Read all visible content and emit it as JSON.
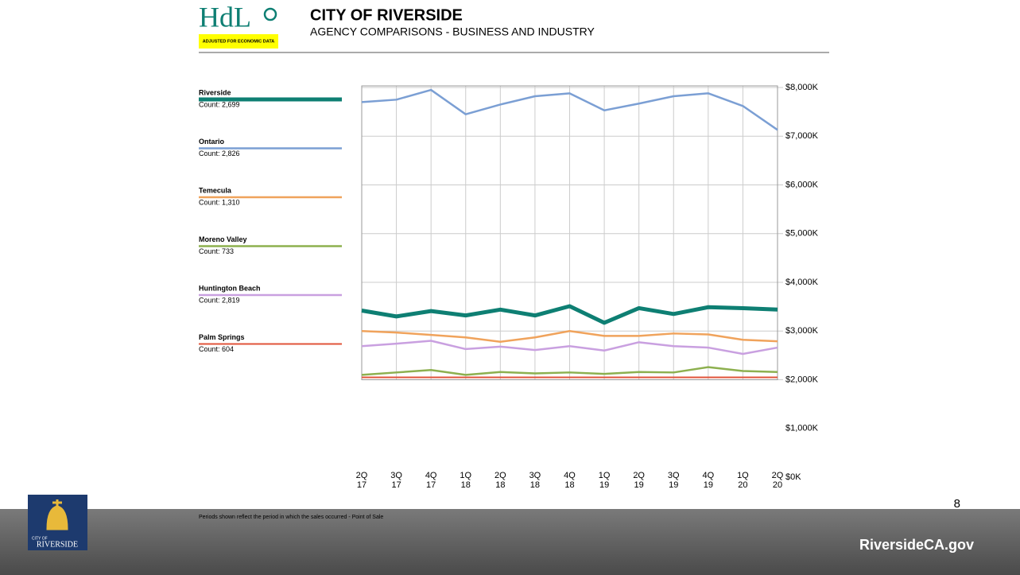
{
  "header": {
    "logo": "HdL",
    "logo_note": "ADJUSTED FOR ECONOMIC DATA",
    "title": "CITY OF RIVERSIDE",
    "subtitle": "AGENCY COMPARISONS - BUSINESS AND INDUSTRY"
  },
  "chart_data": {
    "type": "line",
    "categories": [
      [
        "2Q",
        "17"
      ],
      [
        "3Q",
        "17"
      ],
      [
        "4Q",
        "17"
      ],
      [
        "1Q",
        "18"
      ],
      [
        "2Q",
        "18"
      ],
      [
        "3Q",
        "18"
      ],
      [
        "4Q",
        "18"
      ],
      [
        "1Q",
        "19"
      ],
      [
        "2Q",
        "19"
      ],
      [
        "3Q",
        "19"
      ],
      [
        "4Q",
        "19"
      ],
      [
        "1Q",
        "20"
      ],
      [
        "2Q",
        "20"
      ]
    ],
    "ylim": [
      0,
      8000
    ],
    "yticks": [
      {
        "value": 0,
        "label": "$0K"
      },
      {
        "value": 1000,
        "label": "$1,000K"
      },
      {
        "value": 2000,
        "label": "$2,000K"
      },
      {
        "value": 3000,
        "label": "$3,000K"
      },
      {
        "value": 4000,
        "label": "$4,000K"
      },
      {
        "value": 5000,
        "label": "$5,000K"
      },
      {
        "value": 6000,
        "label": "$6,000K"
      },
      {
        "value": 7000,
        "label": "$7,000K"
      },
      {
        "value": 8000,
        "label": "$8,000K"
      }
    ],
    "grid": true,
    "series": [
      {
        "name": "Riverside",
        "count": "Count: 2,699",
        "color": "#0e7f73",
        "width": 5,
        "values": [
          3420,
          3300,
          3410,
          3320,
          3440,
          3320,
          3510,
          3170,
          3470,
          3350,
          3490,
          3470,
          3440
        ]
      },
      {
        "name": "Ontario",
        "count": "Count: 2,826",
        "color": "#7b9fd4",
        "width": 2.5,
        "values": [
          7700,
          7750,
          7950,
          7450,
          7650,
          7820,
          7880,
          7530,
          7670,
          7820,
          7880,
          7620,
          7130
        ]
      },
      {
        "name": "Temecula",
        "count": "Count: 1,310",
        "color": "#f0a35c",
        "width": 2.5,
        "values": [
          3000,
          2970,
          2920,
          2870,
          2780,
          2870,
          3000,
          2900,
          2900,
          2950,
          2930,
          2820,
          2790
        ]
      },
      {
        "name": "Moreno Valley",
        "count": "Count: 733",
        "color": "#8db04f",
        "width": 2.5,
        "values": [
          2100,
          2150,
          2200,
          2100,
          2160,
          2130,
          2150,
          2120,
          2160,
          2150,
          2260,
          2180,
          2160
        ]
      },
      {
        "name": "Huntington Beach",
        "count": "Count: 2,819",
        "color": "#c9a0e0",
        "width": 2.5,
        "values": [
          2690,
          2740,
          2800,
          2630,
          2680,
          2610,
          2690,
          2600,
          2770,
          2690,
          2660,
          2530,
          2660
        ]
      },
      {
        "name": "Palm Springs",
        "count": "Count: 604",
        "color": "#e0533a",
        "width": 2,
        "values": [
          2050,
          2050,
          2050,
          2050,
          2050,
          2050,
          2050,
          2050,
          2050,
          2050,
          2050,
          2050,
          2050
        ]
      }
    ],
    "note": "Periods shown reflect the period in which the sales occurred - Point of Sale"
  },
  "footer": {
    "page": "8",
    "site": "RiversideCA.gov",
    "seal_small": "CITY OF",
    "seal": "RIVERSIDE"
  }
}
